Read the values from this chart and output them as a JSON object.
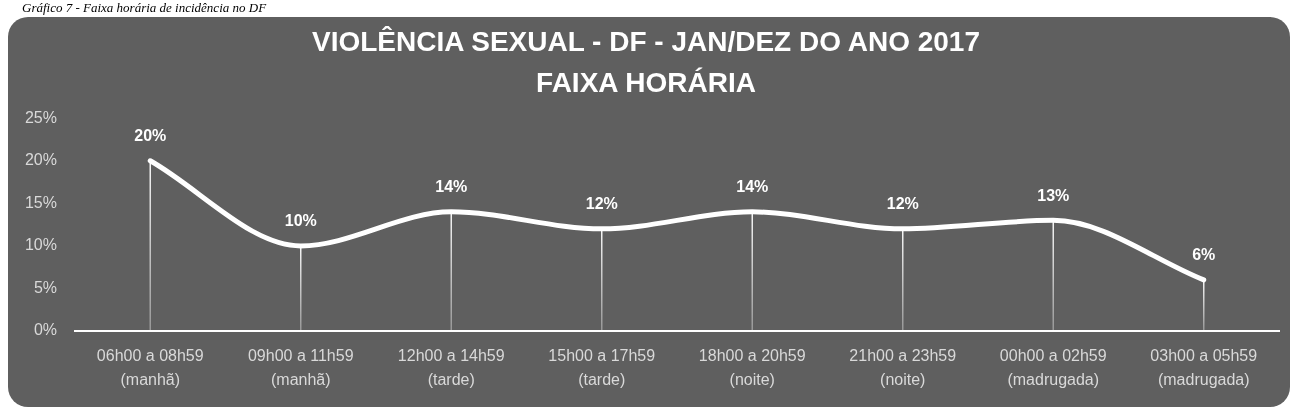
{
  "chart_data": {
    "type": "line",
    "title": "VIOLÊNCIA SEXUAL - DF - JAN/DEZ DO ANO 2017\nFAIXA HORÁRIA",
    "annotations": [
      "Gráfico 7 - Faixa horária de incidência no DF"
    ],
    "categories": [
      "06h00 a 08h59\n(manhã)",
      "09h00 a 11h59\n(manhã)",
      "12h00 a 14h59\n(tarde)",
      "15h00 a 17h59\n(tarde)",
      "18h00 a 20h59\n(noite)",
      "21h00 a 23h59\n(noite)",
      "00h00 a 02h59\n(madrugada)",
      "03h00 a 05h59\n(madrugada)"
    ],
    "values": [
      20,
      10,
      14,
      12,
      14,
      12,
      13,
      6
    ],
    "color": "#ffffff",
    "value_labels": [
      "20%",
      "10%",
      "14%",
      "12%",
      "14%",
      "12%",
      "13%",
      "6%"
    ],
    "line_style": "solid",
    "ylim": [
      0,
      25
    ],
    "yticks": [
      {
        "value": 0,
        "label": "0%"
      },
      {
        "value": 5,
        "label": "5%"
      },
      {
        "value": 10,
        "label": "10%"
      },
      {
        "value": 15,
        "label": "15%"
      },
      {
        "value": 20,
        "label": "20%"
      },
      {
        "value": 25,
        "label": "25%"
      }
    ]
  }
}
